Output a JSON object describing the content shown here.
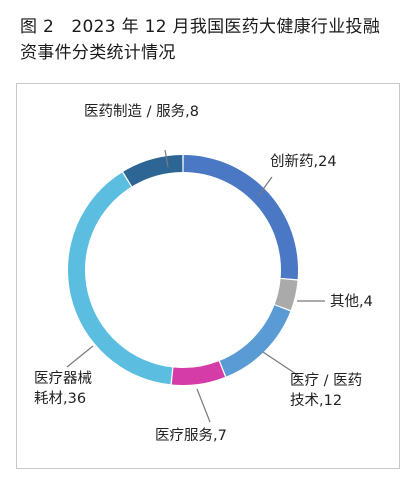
{
  "title_line1": "图 2　2023 年 12 月我国医药大健康行业投融",
  "title_line2": "资事件分类统计情况",
  "chart_data": {
    "type": "pie",
    "donut": true,
    "categories": [
      "创新药",
      "其他",
      "医疗 / 医药技术",
      "医疗服务",
      "医疗器械耗材",
      "医药制造 / 服务"
    ],
    "values": [
      24,
      4,
      12,
      7,
      36,
      8
    ],
    "colors": [
      "#4a78c4",
      "#aaaaaa",
      "#5b9bd5",
      "#d63ca8",
      "#5bbde0",
      "#2d6694"
    ],
    "data_labels": [
      [
        "创新药,24"
      ],
      [
        "其他,4"
      ],
      [
        "医疗 / 医药",
        "技术,12"
      ],
      [
        "医疗服务,7"
      ],
      [
        "医疗器械",
        "耗材,36"
      ],
      [
        "医药制造 / 服务,8"
      ]
    ]
  }
}
